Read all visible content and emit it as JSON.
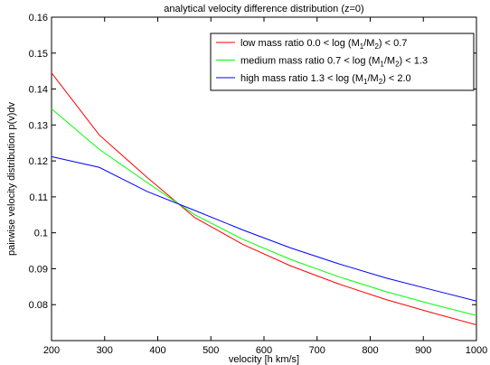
{
  "chart_data": {
    "type": "line",
    "title": "analytical velocity difference distribution (z=0)",
    "xlabel": "velocity [h km/s]",
    "ylabel": "pairwise velocity distribution p(v)dv",
    "xlim": [
      200,
      1000
    ],
    "ylim": [
      0.07,
      0.16
    ],
    "xticks": [
      200,
      300,
      400,
      500,
      600,
      700,
      800,
      900,
      1000
    ],
    "yticks": [
      0.08,
      0.09,
      0.1,
      0.11,
      0.12,
      0.13,
      0.14,
      0.15,
      0.16
    ],
    "xtick_labels": [
      "200",
      "300",
      "400",
      "500",
      "600",
      "700",
      "800",
      "900",
      "1000"
    ],
    "ytick_labels": [
      "0.08",
      "0.09",
      "0.1",
      "0.11",
      "0.12",
      "0.13",
      "0.14",
      "0.15",
      "0.16"
    ],
    "grid": false,
    "legend_position": "top-right",
    "series": [
      {
        "name": "low mass ratio 0.0 < log (M1/M2) < 0.7",
        "legend_main": "low mass ratio 0.0 < log (M",
        "legend_sub1": "1",
        "legend_mid": "/M",
        "legend_sub2": "2",
        "legend_tail": ") < 0.7",
        "color": "#ff0000",
        "x": [
          200,
          290,
          380,
          470,
          560,
          650,
          740,
          830,
          920,
          1000
        ],
        "y": [
          0.1445,
          0.1272,
          0.1154,
          0.1042,
          0.0968,
          0.0908,
          0.0858,
          0.0814,
          0.0776,
          0.0744
        ]
      },
      {
        "name": "medium mass ratio 0.7 < log (M1/M2) < 1.3",
        "legend_main": "medium mass ratio 0.7 < log (M",
        "legend_sub1": "1",
        "legend_mid": "/M",
        "legend_sub2": "2",
        "legend_tail": ") < 1.3",
        "color": "#00ff00",
        "x": [
          200,
          290,
          380,
          470,
          560,
          650,
          740,
          830,
          920,
          1000
        ],
        "y": [
          0.1345,
          0.1232,
          0.114,
          0.105,
          0.0982,
          0.0926,
          0.0878,
          0.0836,
          0.08,
          0.077
        ]
      },
      {
        "name": "high mass ratio 1.3 < log (M1/M2) < 2.0",
        "legend_main": "high mass ratio 1.3 < log (M",
        "legend_sub1": "1",
        "legend_mid": "/M",
        "legend_sub2": "2",
        "legend_tail": ") < 2.0",
        "color": "#0000ff",
        "x": [
          200,
          290,
          380,
          470,
          560,
          650,
          740,
          830,
          920,
          1000
        ],
        "y": [
          0.1212,
          0.1182,
          0.1115,
          0.1062,
          0.1008,
          0.0958,
          0.0914,
          0.0874,
          0.084,
          0.081
        ]
      }
    ]
  }
}
